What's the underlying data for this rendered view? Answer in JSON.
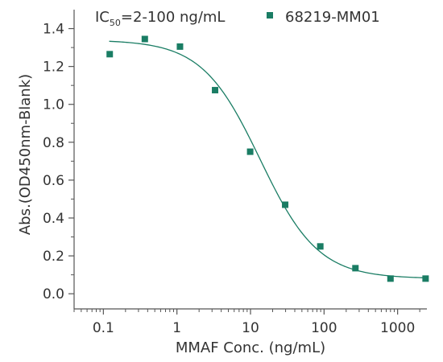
{
  "chart_data": {
    "type": "scatter",
    "title": "",
    "xlabel": "MMAF Conc. (ng/mL)",
    "ylabel": "Abs.(OD450nm-Blank)",
    "x_scale": "log",
    "xlim": [
      0.04,
      2500
    ],
    "ylim": [
      -0.08,
      1.5
    ],
    "x_ticks": [
      0.1,
      1,
      10,
      100,
      1000
    ],
    "x_tick_labels": [
      "0.1",
      "1",
      "10",
      "100",
      "1000"
    ],
    "y_ticks": [
      0.0,
      0.2,
      0.4,
      0.6,
      0.8,
      1.0,
      1.2,
      1.4
    ],
    "y_tick_labels": [
      "0.0",
      "0.2",
      "0.4",
      "0.6",
      "0.8",
      "1.0",
      "1.2",
      "1.4"
    ],
    "grid": false,
    "legend_position": "top-right",
    "annotation": {
      "main": "IC",
      "sub": "50",
      "rest": "=2-100 ng/mL"
    },
    "series": [
      {
        "name": "68219-MM01",
        "color": "#1a7d64",
        "marker": "square",
        "x": [
          0.122,
          0.366,
          1.1,
          3.3,
          9.9,
          29.6,
          88.9,
          267,
          800,
          2400
        ],
        "y": [
          1.265,
          1.345,
          1.305,
          1.075,
          0.75,
          0.47,
          0.25,
          0.135,
          0.08,
          0.08
        ]
      }
    ],
    "fit_curve": {
      "color": "#1a7d64",
      "model": "4PL",
      "top": 1.34,
      "bottom": 0.08,
      "ec50": 13.5,
      "hill": 1.1,
      "x_range": [
        0.12,
        2400
      ]
    }
  }
}
